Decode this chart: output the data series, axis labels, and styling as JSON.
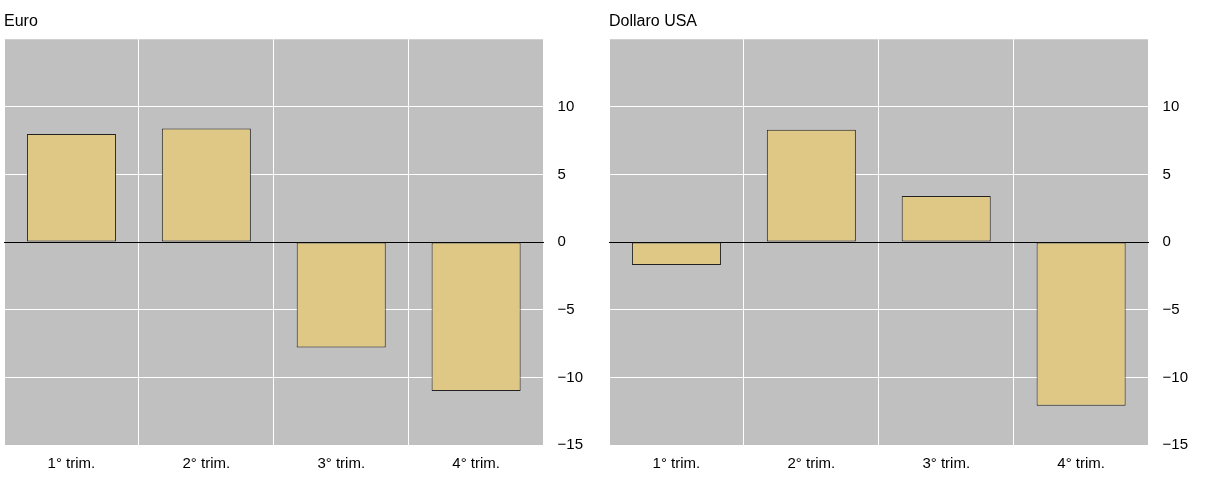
{
  "chart_data": [
    {
      "type": "bar",
      "title": "Euro",
      "categories": [
        "1° trim.",
        "2° trim.",
        "3° trim.",
        "4° trim."
      ],
      "values": [
        8.0,
        8.4,
        -7.8,
        -11.0
      ],
      "color": "#dfc885",
      "ylim": [
        -15,
        15
      ],
      "yticks": [
        -15,
        -10,
        -5,
        0,
        5,
        10
      ],
      "grid": true
    },
    {
      "type": "bar",
      "title": "Dollaro USA",
      "categories": [
        "1° trim.",
        "2° trim.",
        "3° trim.",
        "4° trim."
      ],
      "values": [
        -1.7,
        8.3,
        3.4,
        -12.1
      ],
      "color": "#dfc885",
      "ylim": [
        -15,
        15
      ],
      "yticks": [
        -15,
        -10,
        -5,
        0,
        5,
        10
      ],
      "grid": true
    }
  ]
}
